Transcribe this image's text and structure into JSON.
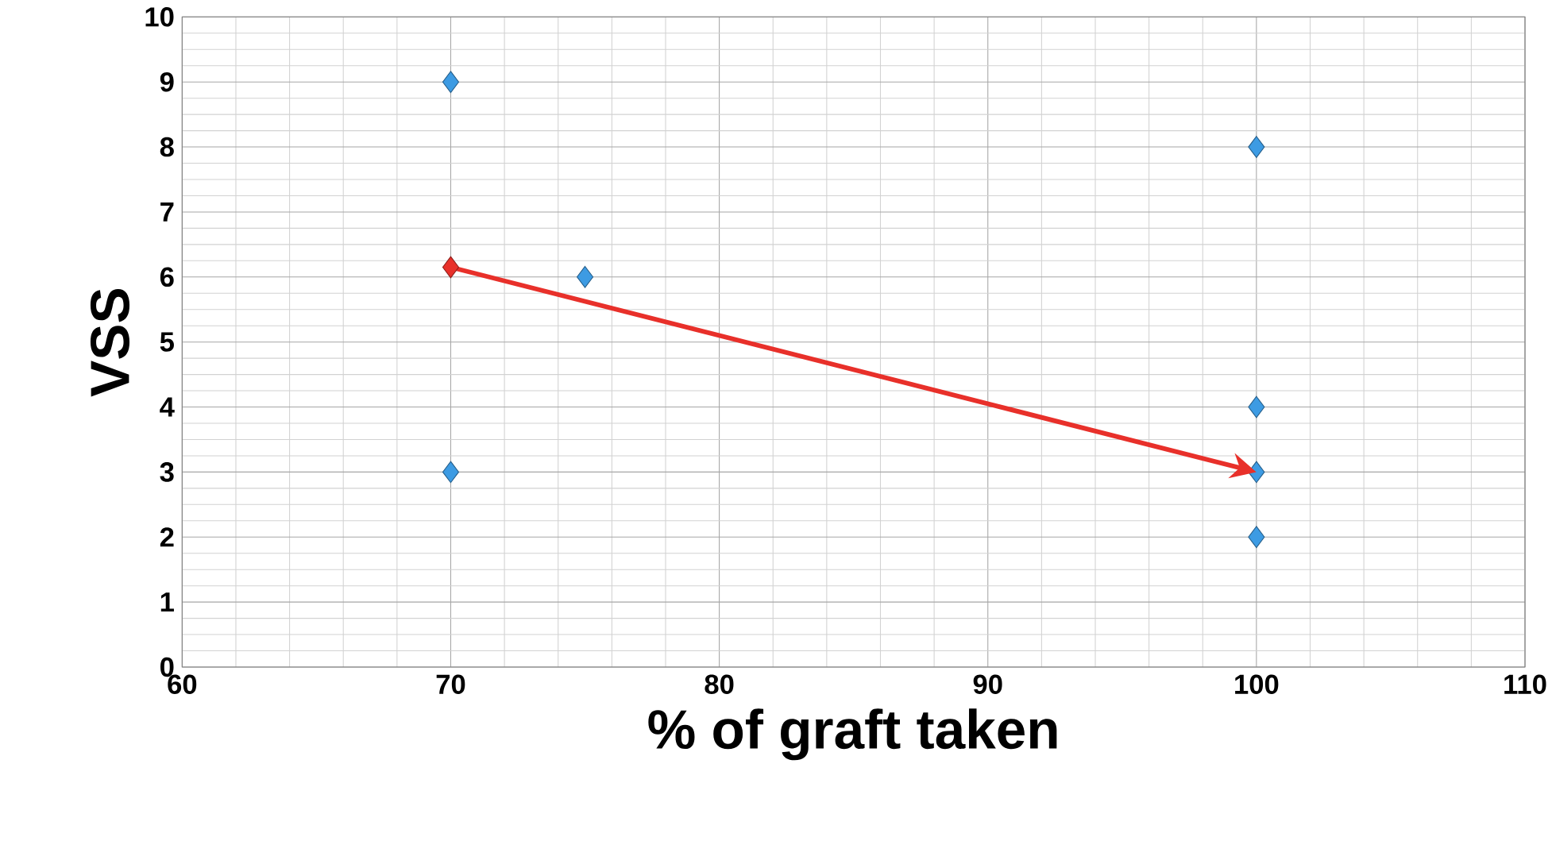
{
  "chart_data": {
    "type": "scatter",
    "xlabel": "% of graft taken",
    "ylabel": "VSS",
    "xlim": [
      60,
      110
    ],
    "xticks": [
      60,
      70,
      80,
      90,
      100,
      110
    ],
    "ylim": [
      0,
      10
    ],
    "yticks": [
      0,
      1,
      2,
      3,
      4,
      5,
      6,
      7,
      8,
      9,
      10
    ],
    "grid": true,
    "marker": "diamond",
    "series": [
      {
        "color": "#3d9be3",
        "x": [
          70,
          70,
          75,
          100,
          100,
          100,
          100
        ],
        "values": [
          9,
          3,
          6,
          8,
          4,
          3,
          2
        ]
      },
      {
        "type": "line",
        "marker": "none",
        "color": "#e8302a",
        "x": [
          70,
          100
        ],
        "values": [
          6.15,
          3
        ]
      },
      {
        "color": "#e8302a",
        "x": [
          70
        ],
        "values": [
          6.15
        ]
      }
    ]
  }
}
